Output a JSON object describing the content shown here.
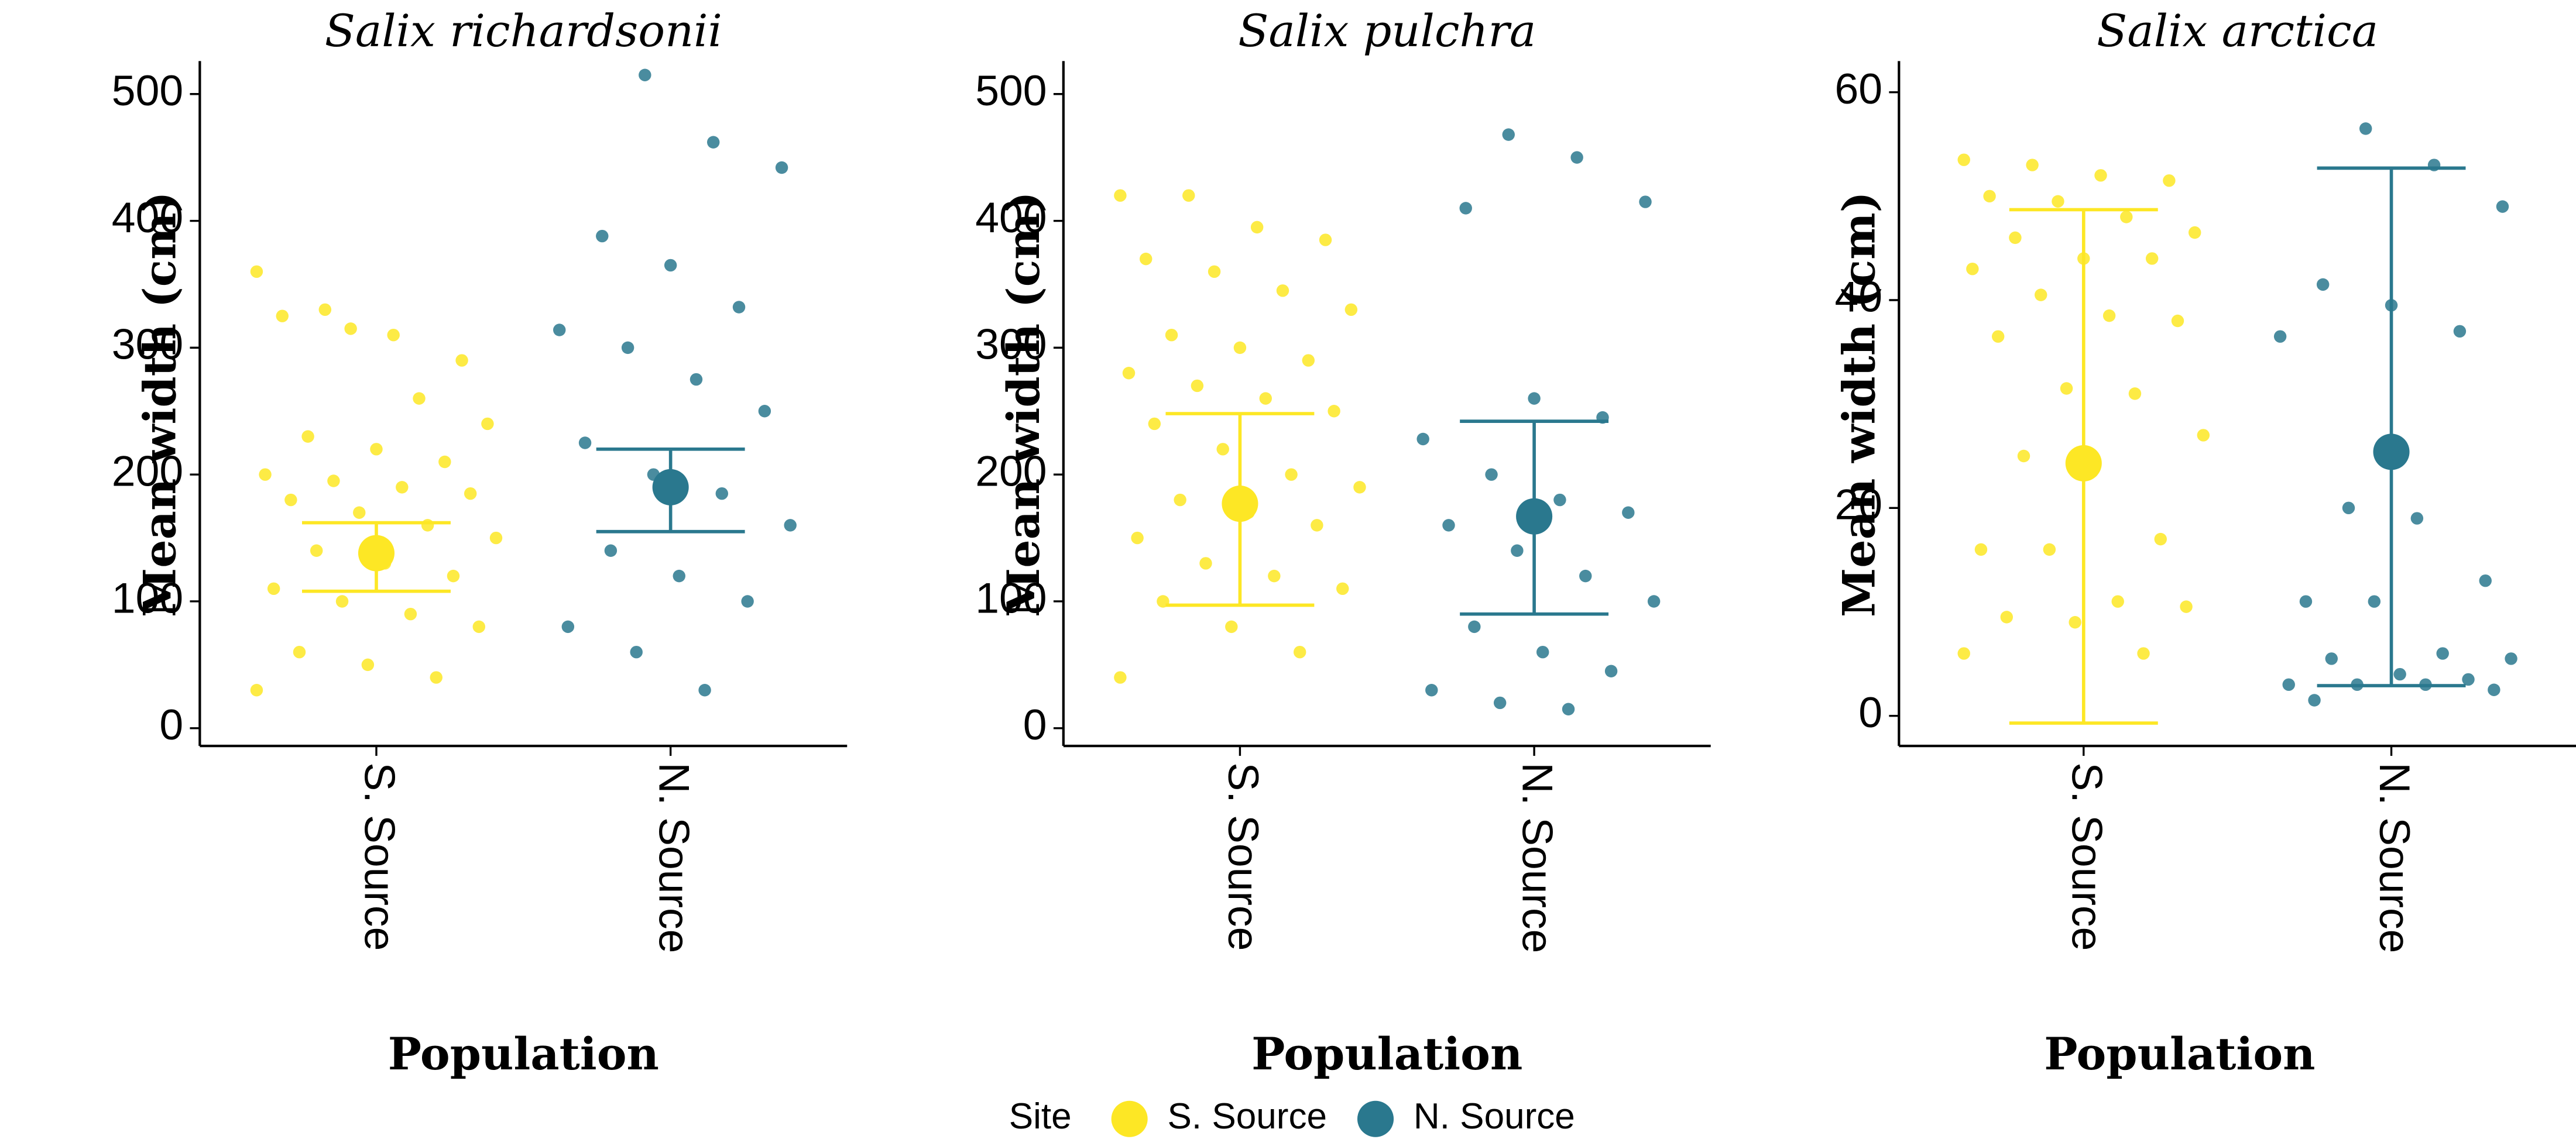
{
  "chart_data": [
    {
      "type": "scatter",
      "title": "Salix richardsonii",
      "ylabel": "Mean width (cm)",
      "xlabel": "Population",
      "categories": [
        "S. Source",
        "N. Source"
      ],
      "ylim": [
        -14,
        526
      ],
      "yticks": [
        0,
        100,
        200,
        300,
        400,
        500
      ],
      "legend_title": "Site",
      "series": [
        {
          "name": "S. Source",
          "color": "#FDE725",
          "mean": 138,
          "error_low": 108,
          "error_high": 162,
          "values": [
            360,
            330,
            310,
            290,
            325,
            315,
            260,
            240,
            230,
            220,
            210,
            200,
            195,
            190,
            185,
            180,
            170,
            160,
            150,
            140,
            130,
            120,
            110,
            100,
            90,
            80,
            60,
            50,
            40,
            30
          ]
        },
        {
          "name": "N. Source",
          "color": "#2A788E",
          "mean": 190,
          "error_low": 155,
          "error_high": 220,
          "values": [
            515,
            462,
            442,
            388,
            365,
            332,
            314,
            300,
            275,
            250,
            225,
            200,
            185,
            160,
            140,
            120,
            100,
            80,
            60,
            30
          ]
        }
      ]
    },
    {
      "type": "scatter",
      "title": "Salix pulchra",
      "ylabel": "Mean width (cm)",
      "xlabel": "Population",
      "categories": [
        "S. Source",
        "N. Source"
      ],
      "ylim": [
        -14,
        526
      ],
      "yticks": [
        0,
        100,
        200,
        300,
        400,
        500
      ],
      "series": [
        {
          "name": "S. Source",
          "color": "#FDE725",
          "mean": 177,
          "error_low": 97,
          "error_high": 248,
          "values": [
            420,
            420,
            395,
            385,
            370,
            360,
            345,
            330,
            310,
            300,
            290,
            280,
            270,
            260,
            250,
            240,
            220,
            200,
            190,
            180,
            170,
            160,
            150,
            130,
            120,
            110,
            100,
            80,
            60,
            40
          ]
        },
        {
          "name": "N. Source",
          "color": "#2A788E",
          "mean": 167,
          "error_low": 90,
          "error_high": 242,
          "values": [
            468,
            450,
            415,
            410,
            260,
            245,
            228,
            200,
            180,
            170,
            160,
            140,
            120,
            100,
            80,
            60,
            45,
            30,
            20,
            15
          ]
        }
      ]
    },
    {
      "type": "scatter",
      "title": "Salix arctica",
      "ylabel": "Mean width (cm)",
      "xlabel": "Population",
      "categories": [
        "S. Source",
        "N. Source"
      ],
      "ylim": [
        -2.9,
        63
      ],
      "yticks": [
        0,
        20,
        40,
        60
      ],
      "series": [
        {
          "name": "S. Source",
          "color": "#FDE725",
          "mean": 24.3,
          "error_low": -0.7,
          "error_high": 48.7,
          "values": [
            53.5,
            53,
            52,
            51.5,
            50,
            49.5,
            48,
            46.5,
            46,
            44,
            44,
            43,
            40.5,
            38.5,
            38,
            36.5,
            31.5,
            31,
            27,
            25,
            23.5,
            17,
            16,
            16,
            11,
            10.5,
            9.5,
            9,
            6,
            6
          ]
        },
        {
          "name": "N. Source",
          "color": "#2A788E",
          "mean": 25.4,
          "error_low": 2.9,
          "error_high": 52.7,
          "values": [
            56.5,
            53,
            49,
            41.5,
            39.5,
            37,
            36.5,
            20,
            19,
            13,
            11,
            11,
            6,
            5.5,
            5.5,
            4,
            3.5,
            3,
            3,
            3,
            2.5,
            1.5
          ]
        }
      ]
    }
  ]
}
